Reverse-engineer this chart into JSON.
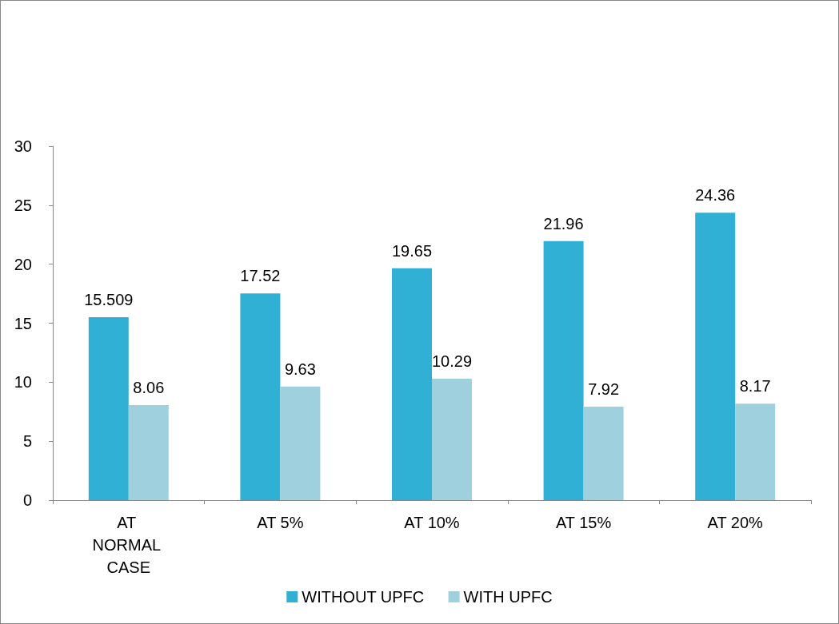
{
  "chart_data": {
    "type": "bar",
    "categories": [
      "AT NORMAL CASE",
      "AT 5%",
      "AT 10%",
      "AT 15%",
      "AT 20%"
    ],
    "series": [
      {
        "name": "WITHOUT UPFC",
        "color": "#31b0d5",
        "values": [
          15.509,
          17.52,
          19.65,
          21.96,
          24.36
        ]
      },
      {
        "name": "WITH UPFC",
        "color": "#9fd0de",
        "values": [
          8.06,
          9.63,
          10.29,
          7.92,
          8.17
        ]
      }
    ],
    "ylim": [
      0,
      30
    ],
    "yticks": [
      0,
      5,
      10,
      15,
      20,
      25,
      30
    ],
    "grid": false,
    "legend": "bottom",
    "data_labels": true
  }
}
